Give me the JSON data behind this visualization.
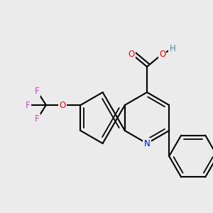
{
  "background_color": "#ebebeb",
  "bond_color": "#000000",
  "bond_width": 1.5,
  "atom_colors": {
    "O": "#ff0000",
    "N": "#0000ee",
    "F": "#cc44cc",
    "H": "#4d8899",
    "C": "#000000"
  },
  "font_size": 8.5,
  "fig_size": [
    3.0,
    3.0
  ],
  "dpi": 100
}
